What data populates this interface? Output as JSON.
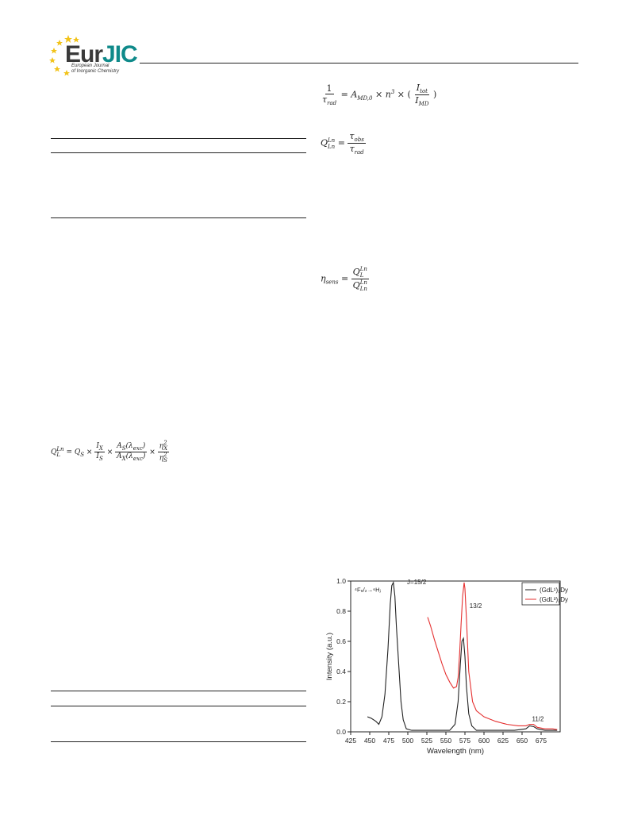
{
  "header": {
    "logo_text_a": "Eur",
    "logo_text_b": "JIC",
    "journal_line1": "European Journal",
    "journal_line2": "of Inorganic Chemistry"
  },
  "equations": {
    "eq1": {
      "lhs_num": "1",
      "lhs_den": "τ",
      "lhs_den_sub": "rad",
      "rhs_A": "A",
      "rhs_A_sub": "MD,0",
      "rhs_n": "n",
      "rhs_n_sup": "3",
      "ratio_num": "I",
      "ratio_num_sub": "tot",
      "ratio_den": "I",
      "ratio_den_sub": "MD"
    },
    "eq2": {
      "Q": "Q",
      "Q_sup": "Ln",
      "Q_sub": "Ln",
      "num": "τ",
      "num_sub": "obs",
      "den": "τ",
      "den_sub": "rad"
    },
    "eq3": {
      "eta": "η",
      "eta_sub": "sens",
      "num": "Q",
      "num_sup": "Ln",
      "num_sub": "L",
      "den": "Q",
      "den_sup": "Ln",
      "den_sub": "Ln"
    },
    "eq4": {
      "Q": "Q",
      "Q_sup": "Ln",
      "Q_sub": "L",
      "Qs": "Q",
      "Qs_sub": "S",
      "Ix": "I",
      "Ix_sub": "X",
      "Is": "I",
      "Is_sub": "S",
      "As": "A",
      "As_sub": "S",
      "lam": "λ",
      "lam_sub": "exc",
      "Ax": "A",
      "Ax_sub": "X",
      "nx": "η",
      "nx_sup": "2",
      "nx_sub": "X",
      "ns": "η",
      "ns_sup": "2",
      "ns_sub": "S"
    }
  },
  "chart_data": {
    "type": "line",
    "xlabel": "Wavelength (nm)",
    "ylabel": "Intensity (a.u.)",
    "xlim": [
      425,
      700
    ],
    "ylim": [
      0,
      1.0
    ],
    "xticks": [
      425,
      450,
      475,
      500,
      525,
      550,
      575,
      600,
      625,
      650,
      675
    ],
    "yticks": [
      0.0,
      0.2,
      0.4,
      0.6,
      0.8,
      1.0
    ],
    "transition_label": "⁴F₉/₂→⁶Hⱼ",
    "annotations": [
      {
        "text": "J=15/2",
        "x": 499,
        "y": 0.98
      },
      {
        "text": "13/2",
        "x": 581,
        "y": 0.82
      },
      {
        "text": "11/2",
        "x": 663,
        "y": 0.07
      }
    ],
    "series": [
      {
        "name": "(GdL¹)₂Dy",
        "color": "#222222",
        "x": [
          447,
          452,
          458,
          462,
          466,
          470,
          474,
          477,
          479,
          481,
          483,
          485,
          488,
          491,
          494,
          498,
          505,
          520,
          540,
          555,
          562,
          566,
          569,
          571,
          573,
          575,
          577,
          580,
          584,
          590,
          610,
          640,
          655,
          660,
          665,
          670,
          680,
          690,
          696
        ],
        "y": [
          0.1,
          0.09,
          0.07,
          0.05,
          0.1,
          0.25,
          0.55,
          0.85,
          0.97,
          0.99,
          0.9,
          0.7,
          0.45,
          0.2,
          0.08,
          0.02,
          0.01,
          0.01,
          0.01,
          0.01,
          0.05,
          0.2,
          0.45,
          0.6,
          0.62,
          0.5,
          0.3,
          0.12,
          0.04,
          0.01,
          0.01,
          0.01,
          0.02,
          0.04,
          0.035,
          0.02,
          0.01,
          0.01,
          0.01
        ]
      },
      {
        "name": "(GdL³)₂Dy",
        "color": "#e53030",
        "x": [
          526,
          530,
          535,
          540,
          545,
          550,
          555,
          560,
          564,
          566,
          568,
          570,
          572,
          574,
          575,
          577,
          580,
          585,
          590,
          600,
          615,
          630,
          645,
          655,
          660,
          665,
          670,
          680,
          690,
          696
        ],
        "y": [
          0.76,
          0.7,
          0.61,
          0.53,
          0.45,
          0.38,
          0.33,
          0.29,
          0.3,
          0.36,
          0.52,
          0.72,
          0.9,
          0.99,
          0.95,
          0.75,
          0.4,
          0.2,
          0.14,
          0.1,
          0.07,
          0.05,
          0.04,
          0.04,
          0.05,
          0.05,
          0.03,
          0.02,
          0.02,
          0.015
        ]
      }
    ],
    "legend": {
      "position": "top-right"
    }
  }
}
